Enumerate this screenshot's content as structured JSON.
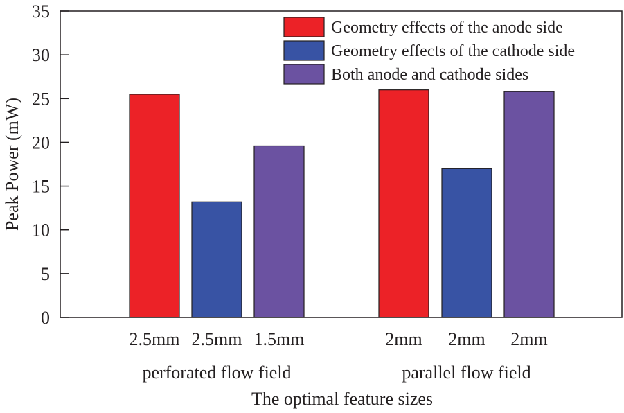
{
  "chart_data": {
    "type": "bar",
    "title": "",
    "xlabel": "The optimal feature sizes",
    "ylabel": "Peak Power (mW)",
    "ylim": [
      0,
      35
    ],
    "yticks": [
      0,
      5,
      10,
      15,
      20,
      25,
      30,
      35
    ],
    "grid": false,
    "legend_position": "top-right",
    "groups": [
      {
        "name": "perforated flow field",
        "bars": [
          {
            "series": "Geometry effects of the anode side",
            "label": "2.5mm",
            "value": 25.5
          },
          {
            "series": "Geometry effects of the cathode side",
            "label": "2.5mm",
            "value": 13.2
          },
          {
            "series": "Both anode and cathode sides",
            "label": "1.5mm",
            "value": 19.6
          }
        ]
      },
      {
        "name": "parallel flow field",
        "bars": [
          {
            "series": "Geometry effects of the anode side",
            "label": "2mm",
            "value": 26.0
          },
          {
            "series": "Geometry effects of the cathode side",
            "label": "2mm",
            "value": 17.0
          },
          {
            "series": "Both anode and cathode sides",
            "label": "2mm",
            "value": 25.8
          }
        ]
      }
    ],
    "series": [
      {
        "name": "Geometry effects of the anode side",
        "color": "#ec2227"
      },
      {
        "name": "Geometry effects of the cathode side",
        "color": "#3853a4"
      },
      {
        "name": "Both anode and cathode sides",
        "color": "#6b52a1"
      }
    ]
  }
}
